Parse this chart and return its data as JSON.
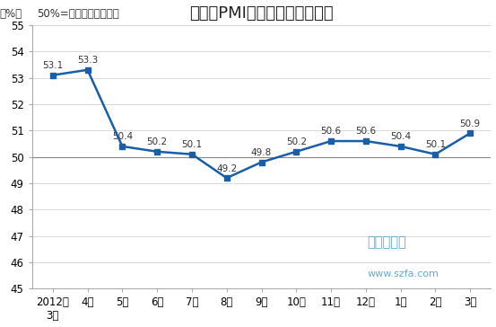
{
  "title": "制造业PMI指数（经季节调整）",
  "subtitle": "50%=与上月比较无变化",
  "ylabel": "（%）",
  "x_labels": [
    "2012年\n3月",
    "4月",
    "5月",
    "6月",
    "7月",
    "8月",
    "9月",
    "10月",
    "11月",
    "12月",
    "1月",
    "2月",
    "3月"
  ],
  "values": [
    53.1,
    53.3,
    50.4,
    50.2,
    50.1,
    49.2,
    49.8,
    50.2,
    50.6,
    50.6,
    50.4,
    50.1,
    50.9
  ],
  "ylim": [
    45,
    55
  ],
  "yticks": [
    45,
    46,
    47,
    48,
    49,
    50,
    51,
    52,
    53,
    54,
    55
  ],
  "reference_line": 50,
  "line_color": "#1a5ea8",
  "marker_color": "#1a5ea8",
  "bg_color": "#ffffff",
  "plot_bg_color": "#ffffff",
  "grid_color": "#cccccc",
  "title_fontsize": 13,
  "label_fontsize": 8.5,
  "subtitle_fontsize": 8.5,
  "data_label_fontsize": 7.5,
  "watermark1": "中国家具网",
  "watermark2": "www.szfa.com",
  "watermark_color": "#4a9cc8"
}
